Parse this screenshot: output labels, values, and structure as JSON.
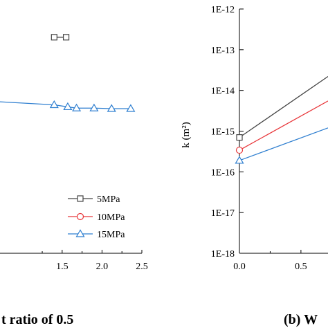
{
  "chart_data": [
    {
      "type": "line",
      "x_ticks": [
        "1.5",
        "2.0",
        "2.5"
      ],
      "xlim": [
        0.72,
        2.5
      ],
      "ylim": [
        0,
        1
      ],
      "legend_position": "bottom-right",
      "series": [
        {
          "name": "5MPa",
          "color": "#444444",
          "marker": "square",
          "x": [
            1.4,
            1.55
          ],
          "y": [
            0.853,
            0.853
          ]
        },
        {
          "name": "10MPa",
          "color": "#e8363a",
          "marker": "circle",
          "x": [],
          "y": []
        },
        {
          "name": "15MPa",
          "color": "#2f7fd0",
          "marker": "triangle",
          "x": [
            0.72,
            1.4,
            1.57,
            1.68,
            1.9,
            2.12,
            2.36
          ],
          "y": [
            0.598,
            0.586,
            0.578,
            0.573,
            0.573,
            0.571,
            0.571
          ]
        }
      ],
      "caption": "t ratio of 0.5"
    },
    {
      "type": "line",
      "y_scale": "log",
      "ylabel": "k (m²)",
      "y_ticks": [
        "1E-12",
        "1E-13",
        "1E-14",
        "1E-15",
        "1E-16",
        "1E-17",
        "1E-18"
      ],
      "x_ticks": [
        "0.0",
        "0.5"
      ],
      "ylim": [
        1e-18,
        1e-12
      ],
      "xlim": [
        0,
        0.72
      ],
      "series": [
        {
          "name": "5MPa",
          "color": "#444444",
          "marker": "square",
          "x": [
            0.0,
            0.72
          ],
          "y": [
            7e-16,
            2.2e-14
          ]
        },
        {
          "name": "10MPa",
          "color": "#e8363a",
          "marker": "circle",
          "x": [
            0.0,
            0.72
          ],
          "y": [
            3.4e-16,
            5.5e-15
          ]
        },
        {
          "name": "15MPa",
          "color": "#2f7fd0",
          "marker": "triangle",
          "x": [
            0.0,
            0.72
          ],
          "y": [
            1.9e-16,
            1.2e-15
          ]
        }
      ],
      "caption": "(b) W"
    }
  ]
}
